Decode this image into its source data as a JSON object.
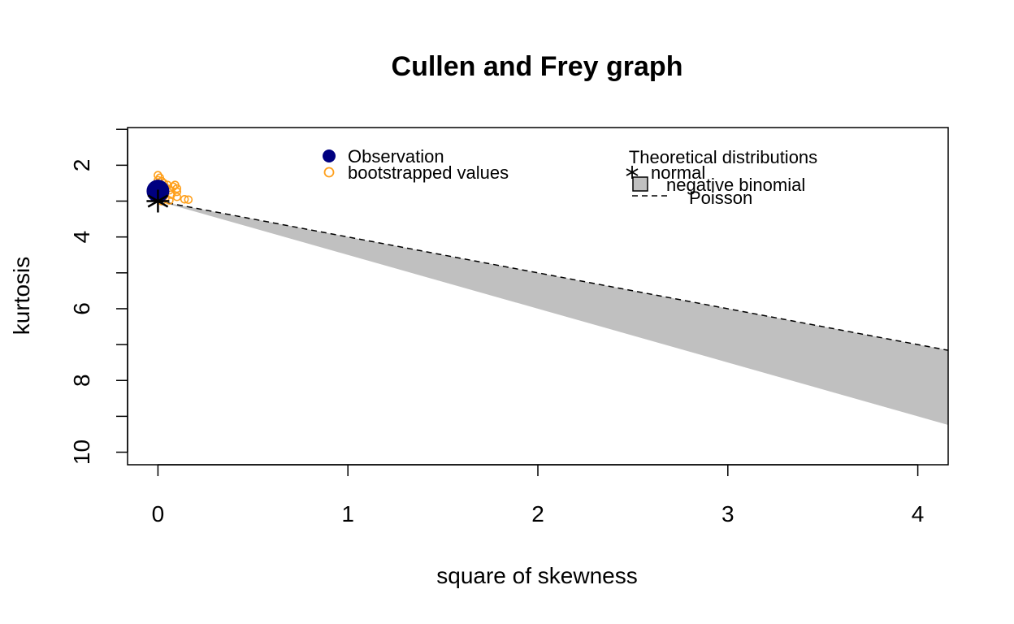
{
  "chart_data": {
    "type": "scatter",
    "title": "Cullen and Frey graph",
    "xlabel": "square of skewness",
    "ylabel": "kurtosis",
    "xlim": [
      -0.16,
      4.16
    ],
    "ylim": [
      10.35,
      0.95
    ],
    "y_reversed": true,
    "x_ticks": [
      0,
      1,
      2,
      3,
      4
    ],
    "x_tick_labels": [
      "0",
      "1",
      "2",
      "3",
      "4"
    ],
    "y_ticks": [
      1,
      2,
      3,
      4,
      5,
      6,
      7,
      8,
      9,
      10
    ],
    "y_tick_labels": [
      "2",
      "4",
      "6",
      "8",
      "10"
    ],
    "y_labeled_ticks": [
      2,
      4,
      6,
      8,
      10
    ],
    "observation": {
      "x": 0.0,
      "y": 2.72,
      "color": "#000080"
    },
    "bootstrapped": {
      "color": "#ff9f1a",
      "points": [
        [
          0.0,
          2.28
        ],
        [
          0.01,
          2.35
        ],
        [
          0.0,
          2.42
        ],
        [
          0.02,
          2.45
        ],
        [
          0.03,
          2.5
        ],
        [
          0.05,
          2.55
        ],
        [
          0.01,
          2.58
        ],
        [
          0.04,
          2.62
        ],
        [
          0.08,
          2.6
        ],
        [
          0.1,
          2.65
        ],
        [
          0.02,
          2.68
        ],
        [
          0.06,
          2.7
        ],
        [
          0.1,
          2.74
        ],
        [
          0.0,
          2.78
        ],
        [
          0.03,
          2.8
        ],
        [
          0.07,
          2.82
        ],
        [
          0.1,
          2.88
        ],
        [
          0.04,
          2.9
        ],
        [
          0.0,
          2.92
        ],
        [
          0.14,
          2.95
        ],
        [
          0.16,
          2.96
        ],
        [
          0.06,
          2.98
        ],
        [
          0.02,
          3.0
        ],
        [
          0.09,
          2.55
        ],
        [
          0.0,
          2.6
        ]
      ]
    },
    "normal": {
      "x": 0,
      "y": 3
    },
    "poisson_line": {
      "x": [
        0,
        4.16
      ],
      "y": [
        3,
        7.16
      ]
    },
    "negative_binomial_region": {
      "upper": {
        "x": [
          0,
          4.16
        ],
        "y": [
          3,
          7.16
        ]
      },
      "lower": {
        "x": [
          0,
          4.16
        ],
        "y": [
          3,
          9.24
        ]
      },
      "fill": "#c0c0c0"
    },
    "legend_left": {
      "position": "top-center",
      "entries": [
        {
          "label": "Observation",
          "symbol": "filled-circle",
          "color": "#000080"
        },
        {
          "label": "bootstrapped values",
          "symbol": "open-circle",
          "color": "#ff9f1a"
        }
      ]
    },
    "legend_right": {
      "position": "top-right",
      "title": "Theoretical distributions",
      "entries": [
        {
          "label": "normal",
          "symbol": "asterisk"
        },
        {
          "label": "negative binomial",
          "symbol": "grey-box"
        },
        {
          "label": "Poisson",
          "symbol": "dashed-line"
        }
      ]
    }
  }
}
